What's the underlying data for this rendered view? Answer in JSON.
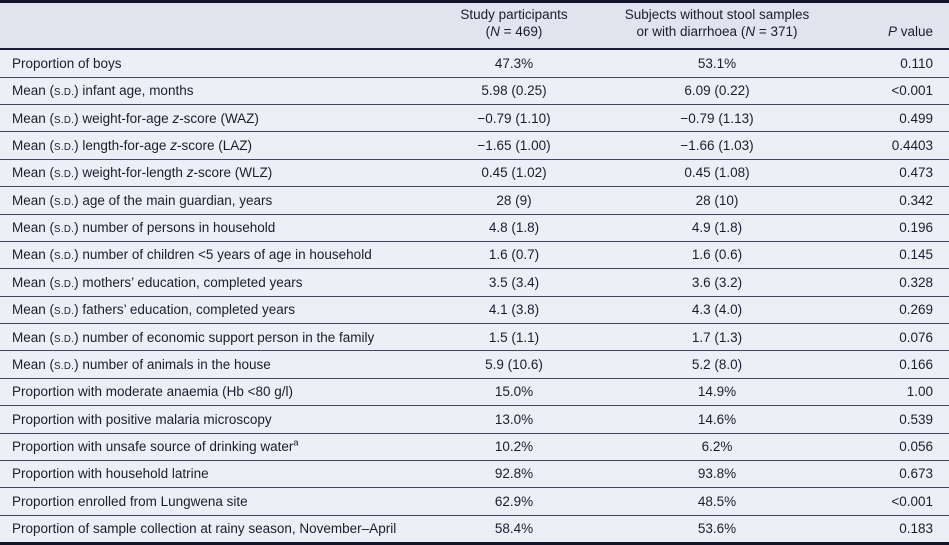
{
  "colors": {
    "header_background": "#e2e3ee",
    "body_background": "#edeff6",
    "text": "#1c1c2e",
    "heavy_border": "#14142b",
    "row_line": "#45455e"
  },
  "table": {
    "columns": [
      {
        "label": ""
      },
      {
        "label": "Study participants\n(N = 469)"
      },
      {
        "label": "Subjects without stool samples\nor with diarrhoea (N = 371)"
      },
      {
        "label": "P value"
      }
    ],
    "rows": [
      {
        "label": "Proportion of boys",
        "study": "47.3%",
        "subjects": "53.1%",
        "p": "0.110"
      },
      {
        "label": "Mean (s.d.) infant age, months",
        "study": "5.98 (0.25)",
        "subjects": "6.09 (0.22)",
        "p": "<0.001"
      },
      {
        "label": "Mean (s.d.) weight-for-age z-score (WAZ)",
        "study": "−0.79 (1.10)",
        "subjects": "−0.79 (1.13)",
        "p": "0.499"
      },
      {
        "label": "Mean (s.d.) length-for-age z-score (LAZ)",
        "study": "−1.65 (1.00)",
        "subjects": "−1.66 (1.03)",
        "p": "0.4403"
      },
      {
        "label": "Mean (s.d.) weight-for-length z-score (WLZ)",
        "study": "0.45 (1.02)",
        "subjects": "0.45 (1.08)",
        "p": "0.473"
      },
      {
        "label": "Mean (s.d.) age of the main guardian, years",
        "study": "28 (9)",
        "subjects": "28 (10)",
        "p": "0.342"
      },
      {
        "label": "Mean (s.d.) number of persons in household",
        "study": "4.8 (1.8)",
        "subjects": "4.9 (1.8)",
        "p": "0.196"
      },
      {
        "label": "Mean (s.d.) number of children <5 years of age in household",
        "study": "1.6 (0.7)",
        "subjects": "1.6 (0.6)",
        "p": "0.145"
      },
      {
        "label": "Mean (s.d.) mothers’ education, completed years",
        "study": "3.5 (3.4)",
        "subjects": "3.6 (3.2)",
        "p": "0.328"
      },
      {
        "label": "Mean (s.d.) fathers’ education, completed years",
        "study": "4.1 (3.8)",
        "subjects": "4.3 (4.0)",
        "p": "0.269"
      },
      {
        "label": "Mean (s.d.) number of economic support person in the family",
        "study": "1.5 (1.1)",
        "subjects": "1.7 (1.3)",
        "p": "0.076"
      },
      {
        "label": "Mean (s.d.) number of animals in the house",
        "study": "5.9 (10.6)",
        "subjects": "5.2 (8.0)",
        "p": "0.166"
      },
      {
        "label": "Proportion with moderate anaemia (Hb <80 g/l)",
        "study": "15.0%",
        "subjects": "14.9%",
        "p": "1.00"
      },
      {
        "label": "Proportion with positive malaria microscopy",
        "study": "13.0%",
        "subjects": "14.6%",
        "p": "0.539"
      },
      {
        "label": "Proportion with unsafe source of drinking water^a",
        "study": "10.2%",
        "subjects": "6.2%",
        "p": "0.056"
      },
      {
        "label": "Proportion with household latrine",
        "study": "92.8%",
        "subjects": "93.8%",
        "p": "0.673"
      },
      {
        "label": "Proportion enrolled from Lungwena site",
        "study": "62.9%",
        "subjects": "48.5%",
        "p": "<0.001"
      },
      {
        "label": "Proportion of sample collection at rainy season, November–April",
        "study": "58.4%",
        "subjects": "53.6%",
        "p": "0.183"
      }
    ]
  }
}
